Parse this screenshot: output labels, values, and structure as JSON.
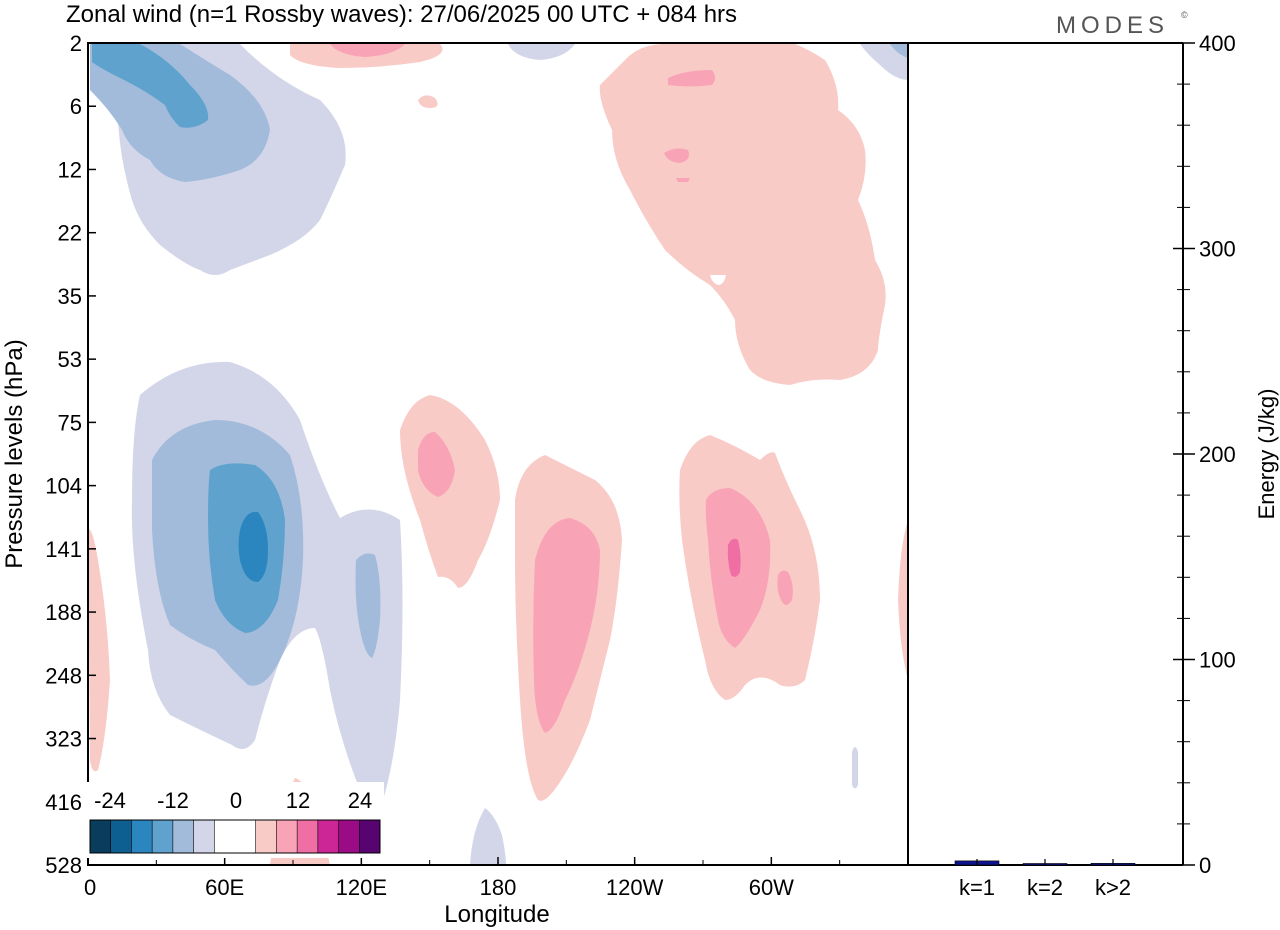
{
  "title": "Zonal wind (n=1 Rossby waves):  27/06/2025  00 UTC  + 084 hrs",
  "logo": "MODES",
  "logo_mark": "©",
  "colors": {
    "neg": [
      "#0a3d5c",
      "#0e5f91",
      "#2b86c0",
      "#5fa2cd",
      "#a2bbdb",
      "#d3d6e8"
    ],
    "zero": "#ffffff",
    "pos": [
      "#f9cbc7",
      "#f9a3b7",
      "#ef6fa4",
      "#cb2596",
      "#9a0b85",
      "#570470"
    ],
    "energy_bar": "#0d138a"
  },
  "colorbar": {
    "labels": [
      "-24",
      "-12",
      "0",
      "12",
      "24"
    ]
  },
  "chart_data": [
    {
      "type": "heatmap",
      "title": "Zonal wind (n=1 Rossby waves):  27/06/2025  00 UTC  + 084 hrs",
      "xlabel": "Longitude",
      "ylabel": "Pressure levels (hPa)",
      "xticks": [
        "0",
        "60E",
        "120E",
        "180",
        "120W",
        "60W"
      ],
      "xtick_values": [
        0,
        60,
        120,
        180,
        240,
        300
      ],
      "xlim": [
        0,
        360
      ],
      "yticks": [
        "2",
        "6",
        "12",
        "22",
        "35",
        "53",
        "75",
        "104",
        "141",
        "188",
        "248",
        "323",
        "416",
        "528"
      ],
      "ylim": [
        "2",
        "528"
      ],
      "levels": [
        -24,
        -20,
        -16,
        -12,
        -8,
        -4,
        4,
        8,
        12,
        16,
        20,
        24
      ],
      "features": [
        {
          "sign": "negative",
          "lon_range": [
            0,
            110
          ],
          "level_range": [
            "2",
            "22"
          ],
          "min_estimate": -16
        },
        {
          "sign": "negative",
          "lon_range": [
            20,
            140
          ],
          "level_range": [
            "53",
            "416"
          ],
          "min_estimate": -20
        },
        {
          "sign": "positive",
          "lon_range": [
            140,
            180
          ],
          "level_range": [
            "75",
            "188"
          ],
          "max_estimate": 8
        },
        {
          "sign": "positive",
          "lon_range": [
            185,
            235
          ],
          "level_range": [
            "104",
            "416"
          ],
          "max_estimate": 8
        },
        {
          "sign": "positive",
          "lon_range": [
            260,
            320
          ],
          "level_range": [
            "104",
            "248"
          ],
          "max_estimate": 12
        },
        {
          "sign": "positive",
          "lon_range": [
            225,
            350
          ],
          "level_range": [
            "2",
            "53"
          ],
          "max_estimate": 8
        }
      ]
    },
    {
      "type": "bar",
      "ylabel": "Energy (J/kg)",
      "categories": [
        "k=1",
        "k=2",
        "k>2"
      ],
      "values": [
        2,
        0.5,
        0.8
      ],
      "ylim": [
        0,
        400
      ],
      "yticks": [
        0,
        100,
        200,
        300,
        400
      ]
    }
  ]
}
